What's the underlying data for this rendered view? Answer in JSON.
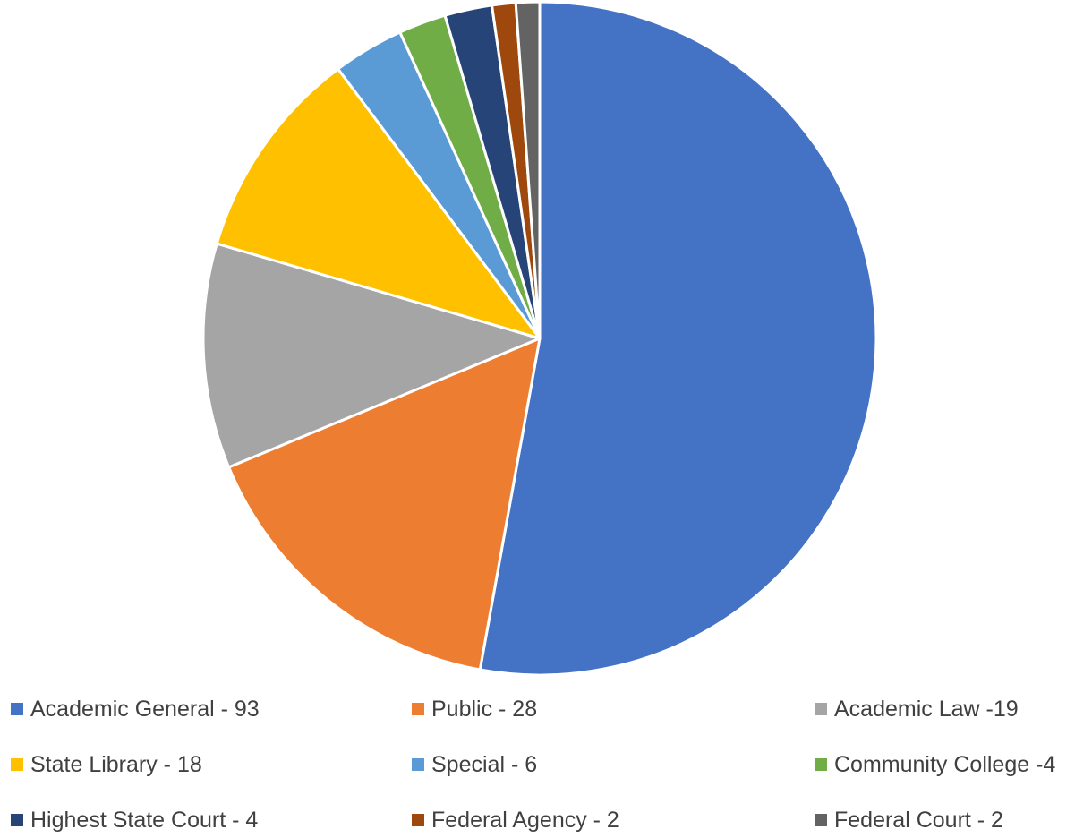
{
  "chart_data": {
    "type": "pie",
    "title": "",
    "start_angle_deg": 90,
    "direction": "clockwise",
    "legend_position": "bottom",
    "slices": [
      {
        "label": "Academic General - 93",
        "value": 93,
        "color": "#4472C4"
      },
      {
        "label": "Public - 28",
        "value": 28,
        "color": "#ED7D31"
      },
      {
        "label": "Academic Law -19",
        "value": 19,
        "color": "#A5A5A5"
      },
      {
        "label": "State Library - 18",
        "value": 18,
        "color": "#FFC000"
      },
      {
        "label": "Special - 6",
        "value": 6,
        "color": "#5B9BD5"
      },
      {
        "label": "Community College -4",
        "value": 4,
        "color": "#70AD47"
      },
      {
        "label": "Highest State Court - 4",
        "value": 4,
        "color": "#264478"
      },
      {
        "label": "Federal Agency - 2",
        "value": 2,
        "color": "#9E480E"
      },
      {
        "label": "Federal Court - 2",
        "value": 2,
        "color": "#636363"
      }
    ]
  }
}
